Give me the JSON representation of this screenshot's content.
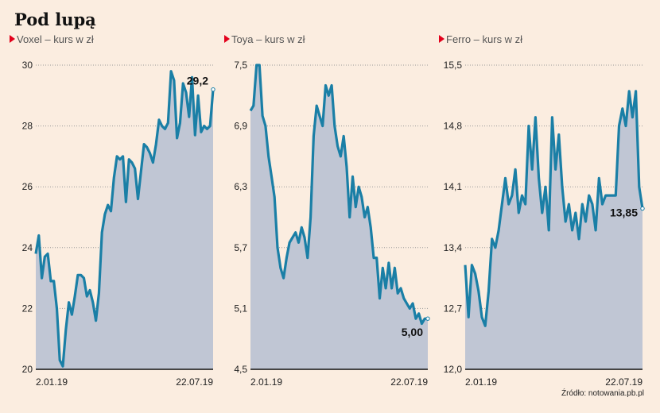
{
  "title": "Pod lupą",
  "source": "Źródło: notowania.pb.pl",
  "colors": {
    "line": "#1a7fa6",
    "fill": "#c0c6d4",
    "marker": "#e3001b",
    "background": "#fbede0"
  },
  "chart_data": [
    {
      "type": "area",
      "title": "Voxel – kurs w zł",
      "ylim": [
        20,
        30
      ],
      "yticks": [
        "20",
        "22",
        "24",
        "26",
        "28",
        "30"
      ],
      "yticks_values": [
        20,
        22,
        24,
        26,
        28,
        30
      ],
      "xticks": [
        "2.01.19",
        "22.07.19"
      ],
      "last_label": "29,2",
      "values": [
        23.8,
        24.4,
        23,
        23.7,
        23.8,
        22.9,
        22.9,
        22,
        20.3,
        20.1,
        21.3,
        22.2,
        21.8,
        22.4,
        23.1,
        23.1,
        23,
        22.4,
        22.6,
        22.2,
        21.6,
        22.5,
        24.5,
        25.1,
        25.4,
        25.2,
        26.3,
        27,
        26.9,
        27,
        25.5,
        26.9,
        26.8,
        26.6,
        25.6,
        26.5,
        27.4,
        27.3,
        27.1,
        26.8,
        27.4,
        28.2,
        28,
        27.9,
        28.1,
        29.8,
        29.5,
        27.6,
        28.1,
        29.4,
        29.1,
        28.3,
        29.6,
        27.7,
        29,
        27.8,
        28,
        27.9,
        28,
        29.2
      ]
    },
    {
      "type": "area",
      "title": "Toya – kurs w zł",
      "ylim": [
        4.5,
        7.5
      ],
      "yticks": [
        "4,5",
        "5,1",
        "5,7",
        "6,3",
        "6,9",
        "7,5"
      ],
      "yticks_values": [
        4.5,
        5.1,
        5.7,
        6.3,
        6.9,
        7.5
      ],
      "xticks": [
        "2.01.19",
        "22.07.19"
      ],
      "last_label": "5,00",
      "values": [
        7.05,
        7.1,
        7.5,
        7.5,
        7.0,
        6.9,
        6.6,
        6.4,
        6.2,
        5.7,
        5.5,
        5.4,
        5.6,
        5.75,
        5.8,
        5.85,
        5.75,
        5.9,
        5.8,
        5.6,
        6.0,
        6.8,
        7.1,
        7.0,
        6.9,
        7.3,
        7.2,
        7.3,
        6.9,
        6.7,
        6.6,
        6.8,
        6.5,
        6.0,
        6.4,
        6.1,
        6.3,
        6.2,
        6.0,
        6.1,
        5.9,
        5.6,
        5.6,
        5.2,
        5.5,
        5.3,
        5.55,
        5.3,
        5.5,
        5.25,
        5.3,
        5.2,
        5.15,
        5.1,
        5.15,
        5.0,
        5.05,
        4.95,
        5.0,
        5.0
      ]
    },
    {
      "type": "area",
      "title": "Ferro – kurs w zł",
      "ylim": [
        12.0,
        15.5
      ],
      "yticks": [
        "12,0",
        "12,7",
        "13,4",
        "14,1",
        "14,8",
        "15,5"
      ],
      "yticks_values": [
        12.0,
        12.7,
        13.4,
        14.1,
        14.8,
        15.5
      ],
      "xticks": [
        "2.01.19",
        "22.07.19"
      ],
      "last_label": "13,85",
      "values": [
        13.2,
        12.6,
        13.2,
        13.1,
        12.9,
        12.6,
        12.5,
        12.9,
        13.5,
        13.4,
        13.6,
        13.9,
        14.2,
        13.9,
        14.0,
        14.3,
        13.8,
        14.0,
        13.9,
        14.8,
        14.3,
        14.9,
        14.2,
        13.8,
        14.1,
        13.6,
        14.9,
        14.3,
        14.7,
        14.1,
        13.7,
        13.9,
        13.6,
        13.8,
        13.5,
        13.9,
        13.7,
        14.0,
        13.9,
        13.6,
        14.2,
        13.9,
        14.0,
        14.0,
        14.0,
        14.0,
        14.8,
        15.0,
        14.8,
        15.2,
        14.9,
        15.2,
        14.1,
        13.85
      ]
    }
  ]
}
